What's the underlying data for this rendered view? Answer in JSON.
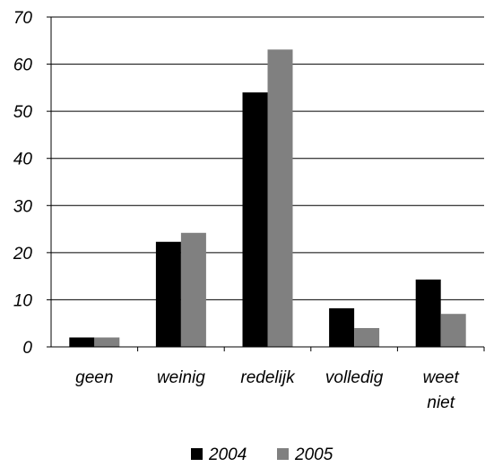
{
  "chart_data": {
    "type": "bar",
    "categories": [
      [
        "geen"
      ],
      [
        "weinig"
      ],
      [
        "redelijk"
      ],
      [
        "volledig"
      ],
      [
        "weet",
        "niet"
      ]
    ],
    "series": [
      {
        "name": "2004",
        "color": "#000000",
        "values": [
          2,
          22.3,
          54,
          8.2,
          14.3
        ]
      },
      {
        "name": "2005",
        "color": "#808080",
        "values": [
          2,
          24.2,
          63.1,
          4,
          7
        ]
      }
    ],
    "ylim": [
      0,
      70
    ],
    "yticks": [
      "0",
      "10",
      "20",
      "30",
      "40",
      "50",
      "60",
      "70"
    ],
    "grid": true,
    "legend": "bottom"
  }
}
